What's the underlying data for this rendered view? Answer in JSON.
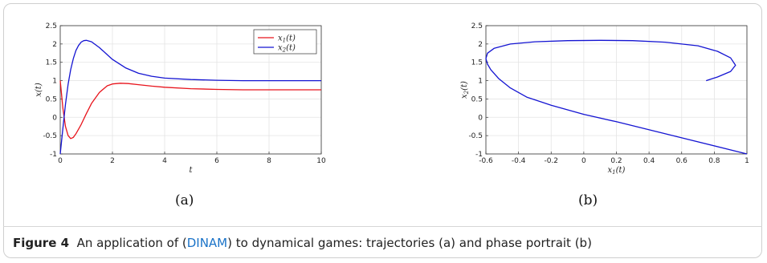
{
  "figure": {
    "caption_label": "Figure 4",
    "caption_pre": "An application of (",
    "caption_link": "DINAM",
    "caption_post": ") to dynamical games: trajectories (a) and phase portrait (b)",
    "sub_a": "(a)",
    "sub_b": "(b)"
  },
  "chart_data": [
    {
      "type": "line",
      "title": "",
      "xlabel": "t",
      "ylabel": "x(t)",
      "xlim": [
        0,
        10
      ],
      "ylim": [
        -1,
        2.5
      ],
      "xticks": [
        0,
        2,
        4,
        6,
        8,
        10
      ],
      "yticks": [
        -1,
        -0.5,
        0,
        0.5,
        1,
        1.5,
        2,
        2.5
      ],
      "grid": true,
      "legend": "top-right",
      "series": [
        {
          "name": "x1(t)",
          "color": "#e8141c",
          "x": [
            0,
            0.1,
            0.2,
            0.3,
            0.4,
            0.5,
            0.6,
            0.8,
            1.0,
            1.2,
            1.5,
            1.8,
            2.0,
            2.3,
            2.6,
            3.0,
            3.5,
            4.0,
            5.0,
            6.0,
            7.0,
            8.0,
            9.0,
            10.0
          ],
          "y": [
            1.0,
            0.25,
            -0.25,
            -0.5,
            -0.58,
            -0.55,
            -0.45,
            -0.2,
            0.1,
            0.38,
            0.68,
            0.86,
            0.91,
            0.93,
            0.92,
            0.89,
            0.85,
            0.82,
            0.78,
            0.76,
            0.75,
            0.75,
            0.75,
            0.75
          ]
        },
        {
          "name": "x2(t)",
          "color": "#1414d2",
          "x": [
            0,
            0.1,
            0.2,
            0.3,
            0.4,
            0.5,
            0.6,
            0.7,
            0.8,
            0.9,
            1.0,
            1.2,
            1.5,
            2.0,
            2.5,
            3.0,
            3.5,
            4.0,
            5.0,
            6.0,
            7.0,
            8.0,
            9.0,
            10.0
          ],
          "y": [
            -1.0,
            -0.3,
            0.35,
            0.9,
            1.3,
            1.6,
            1.82,
            1.96,
            2.05,
            2.09,
            2.1,
            2.06,
            1.9,
            1.58,
            1.35,
            1.2,
            1.12,
            1.07,
            1.03,
            1.01,
            1.0,
            1.0,
            1.0,
            1.0
          ]
        }
      ]
    },
    {
      "type": "line",
      "title": "",
      "xlabel": "x1(t)",
      "ylabel": "x2(t)",
      "xlim": [
        -0.6,
        1
      ],
      "ylim": [
        -1,
        2.5
      ],
      "xticks": [
        -0.6,
        -0.4,
        -0.2,
        0,
        0.2,
        0.4,
        0.6,
        0.8,
        1
      ],
      "yticks": [
        -1,
        -0.5,
        0,
        0.5,
        1,
        1.5,
        2,
        2.5
      ],
      "grid": true,
      "series": [
        {
          "color": "#1414d2",
          "x": [
            1.0,
            0.6,
            0.2,
            0.0,
            -0.2,
            -0.35,
            -0.45,
            -0.52,
            -0.57,
            -0.59,
            -0.6,
            -0.59,
            -0.55,
            -0.45,
            -0.3,
            -0.1,
            0.1,
            0.3,
            0.5,
            0.7,
            0.82,
            0.9,
            0.93,
            0.9,
            0.82,
            0.75
          ],
          "y": [
            -1.0,
            -0.56,
            -0.12,
            0.08,
            0.33,
            0.55,
            0.8,
            1.05,
            1.3,
            1.45,
            1.6,
            1.75,
            1.88,
            2.0,
            2.06,
            2.09,
            2.1,
            2.09,
            2.05,
            1.95,
            1.8,
            1.62,
            1.42,
            1.25,
            1.1,
            1.0
          ]
        }
      ]
    }
  ]
}
